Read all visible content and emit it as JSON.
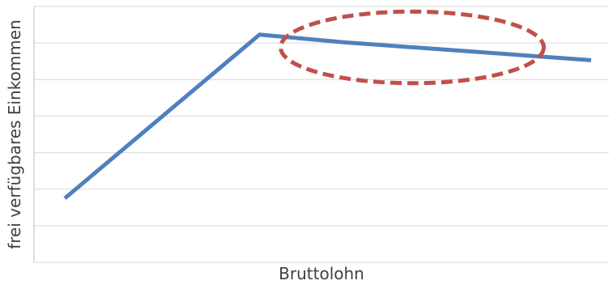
{
  "chart_data": {
    "type": "line",
    "xlabel": "Bruttolohn",
    "ylabel": "frei verfügbares Einkommen",
    "x": [
      0,
      0.37,
      0.53,
      1.0
    ],
    "series": [
      {
        "values": [
          0.25,
          0.89,
          0.86,
          0.79
        ],
        "color": "#4F81BD"
      }
    ],
    "xlim": [
      0,
      1
    ],
    "ylim": [
      0,
      1
    ],
    "grid": true,
    "gridlines": 7,
    "legend": "none",
    "annotations": [
      {
        "type": "dashed-ellipse",
        "color": "#C0504D",
        "cx": 0.66,
        "cy": 0.84,
        "rx": 0.25,
        "ry": 0.14
      }
    ]
  }
}
